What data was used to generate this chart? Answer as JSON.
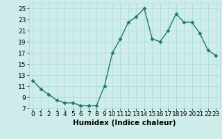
{
  "x": [
    0,
    1,
    2,
    3,
    4,
    5,
    6,
    7,
    8,
    9,
    10,
    11,
    12,
    13,
    14,
    15,
    16,
    17,
    18,
    19,
    20,
    21,
    22,
    23
  ],
  "y": [
    12,
    10.5,
    9.5,
    8.5,
    8,
    8,
    7.5,
    7.5,
    7.5,
    11,
    17,
    19.5,
    22.5,
    23.5,
    25,
    19.5,
    19,
    21,
    24,
    22.5,
    22.5,
    20.5,
    17.5,
    16.5
  ],
  "line_color": "#1a7a6e",
  "marker": "D",
  "marker_size": 2.5,
  "bg_color": "#ceecea",
  "grid_color": "#aad8d5",
  "xlabel": "Humidex (Indice chaleur)",
  "ylim": [
    7,
    26
  ],
  "xlim": [
    -0.5,
    23.5
  ],
  "yticks": [
    7,
    9,
    11,
    13,
    15,
    17,
    19,
    21,
    23,
    25
  ],
  "xticks": [
    0,
    1,
    2,
    3,
    4,
    5,
    6,
    7,
    8,
    9,
    10,
    11,
    12,
    13,
    14,
    15,
    16,
    17,
    18,
    19,
    20,
    21,
    22,
    23
  ],
  "tick_fontsize": 6.5,
  "xlabel_fontsize": 7.5,
  "linewidth": 1.0
}
